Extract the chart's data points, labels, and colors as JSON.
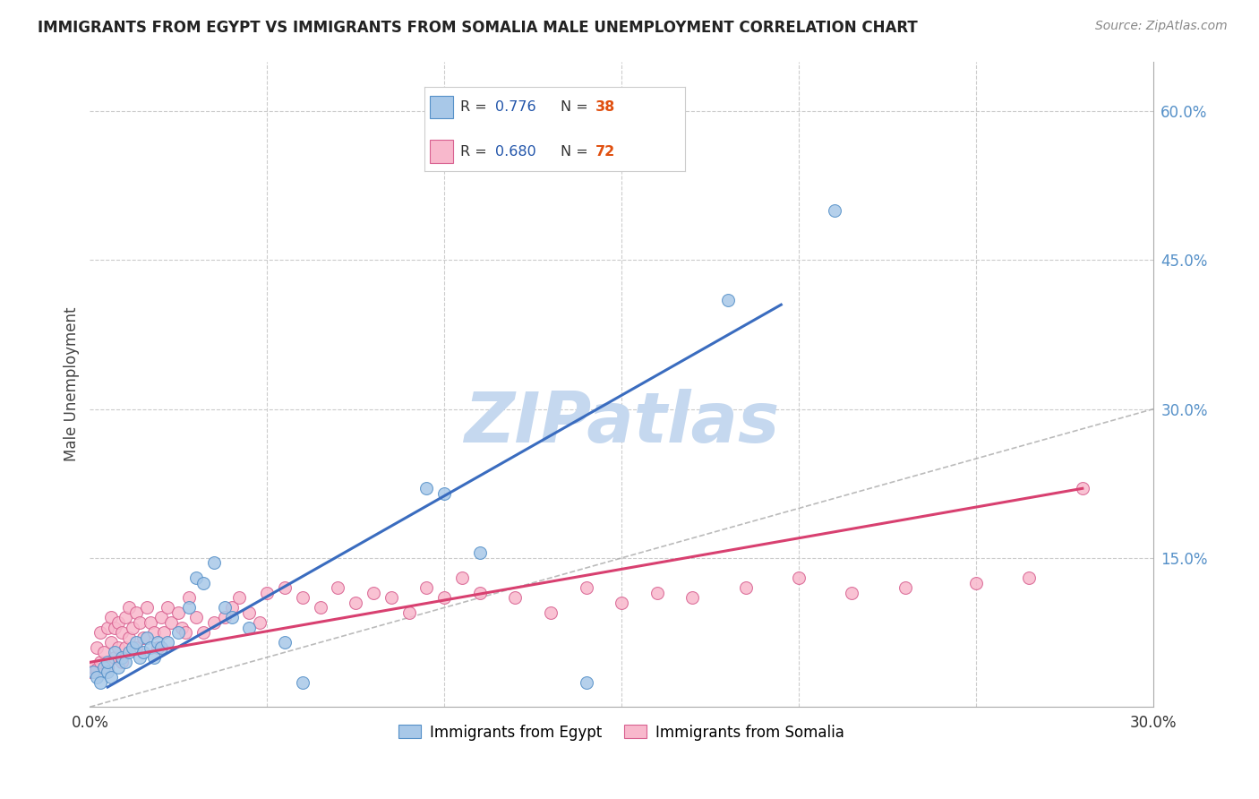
{
  "title": "IMMIGRANTS FROM EGYPT VS IMMIGRANTS FROM SOMALIA MALE UNEMPLOYMENT CORRELATION CHART",
  "source": "Source: ZipAtlas.com",
  "ylabel": "Male Unemployment",
  "xlim": [
    0.0,
    0.3
  ],
  "ylim": [
    0.0,
    0.65
  ],
  "egypt_color": "#a8c8e8",
  "egypt_edge_color": "#5590c8",
  "somalia_color": "#f8b8cc",
  "somalia_edge_color": "#d86090",
  "egypt_line_color": "#3a6cbf",
  "somalia_line_color": "#d84070",
  "diagonal_color": "#aaaaaa",
  "watermark_color": "#c5d8ef",
  "watermark_text": "ZIPatlas",
  "egypt_R": "0.776",
  "egypt_N": "38",
  "somalia_R": "0.680",
  "somalia_N": "72",
  "legend_R_color": "#2255aa",
  "legend_N_color": "#e05010",
  "egypt_points_x": [
    0.001,
    0.002,
    0.003,
    0.004,
    0.005,
    0.005,
    0.006,
    0.007,
    0.008,
    0.009,
    0.01,
    0.011,
    0.012,
    0.013,
    0.014,
    0.015,
    0.016,
    0.017,
    0.018,
    0.019,
    0.02,
    0.022,
    0.025,
    0.028,
    0.03,
    0.032,
    0.035,
    0.038,
    0.04,
    0.045,
    0.055,
    0.06,
    0.095,
    0.1,
    0.11,
    0.14,
    0.18,
    0.21
  ],
  "egypt_points_y": [
    0.035,
    0.03,
    0.025,
    0.04,
    0.035,
    0.045,
    0.03,
    0.055,
    0.04,
    0.05,
    0.045,
    0.055,
    0.06,
    0.065,
    0.05,
    0.055,
    0.07,
    0.06,
    0.05,
    0.065,
    0.06,
    0.065,
    0.075,
    0.1,
    0.13,
    0.125,
    0.145,
    0.1,
    0.09,
    0.08,
    0.065,
    0.025,
    0.22,
    0.215,
    0.155,
    0.025,
    0.41,
    0.5
  ],
  "somalia_points_x": [
    0.0,
    0.001,
    0.002,
    0.002,
    0.003,
    0.003,
    0.004,
    0.005,
    0.005,
    0.006,
    0.006,
    0.007,
    0.007,
    0.008,
    0.008,
    0.009,
    0.009,
    0.01,
    0.01,
    0.011,
    0.011,
    0.012,
    0.013,
    0.013,
    0.014,
    0.015,
    0.016,
    0.017,
    0.018,
    0.019,
    0.02,
    0.021,
    0.022,
    0.023,
    0.025,
    0.026,
    0.027,
    0.028,
    0.03,
    0.032,
    0.035,
    0.038,
    0.04,
    0.042,
    0.045,
    0.048,
    0.05,
    0.055,
    0.06,
    0.065,
    0.07,
    0.075,
    0.08,
    0.085,
    0.09,
    0.095,
    0.1,
    0.105,
    0.11,
    0.12,
    0.13,
    0.14,
    0.15,
    0.16,
    0.17,
    0.185,
    0.2,
    0.215,
    0.23,
    0.25,
    0.265,
    0.28
  ],
  "somalia_points_y": [
    0.035,
    0.04,
    0.038,
    0.06,
    0.045,
    0.075,
    0.055,
    0.04,
    0.08,
    0.065,
    0.09,
    0.05,
    0.08,
    0.06,
    0.085,
    0.045,
    0.075,
    0.06,
    0.09,
    0.07,
    0.1,
    0.08,
    0.095,
    0.06,
    0.085,
    0.07,
    0.1,
    0.085,
    0.075,
    0.06,
    0.09,
    0.075,
    0.1,
    0.085,
    0.095,
    0.08,
    0.075,
    0.11,
    0.09,
    0.075,
    0.085,
    0.09,
    0.1,
    0.11,
    0.095,
    0.085,
    0.115,
    0.12,
    0.11,
    0.1,
    0.12,
    0.105,
    0.115,
    0.11,
    0.095,
    0.12,
    0.11,
    0.13,
    0.115,
    0.11,
    0.095,
    0.12,
    0.105,
    0.115,
    0.11,
    0.12,
    0.13,
    0.115,
    0.12,
    0.125,
    0.13,
    0.22
  ],
  "egypt_line_x0": 0.005,
  "egypt_line_y0": 0.02,
  "egypt_line_x1": 0.195,
  "egypt_line_y1": 0.405,
  "somalia_line_x0": 0.0,
  "somalia_line_y0": 0.045,
  "somalia_line_x1": 0.28,
  "somalia_line_y1": 0.22
}
